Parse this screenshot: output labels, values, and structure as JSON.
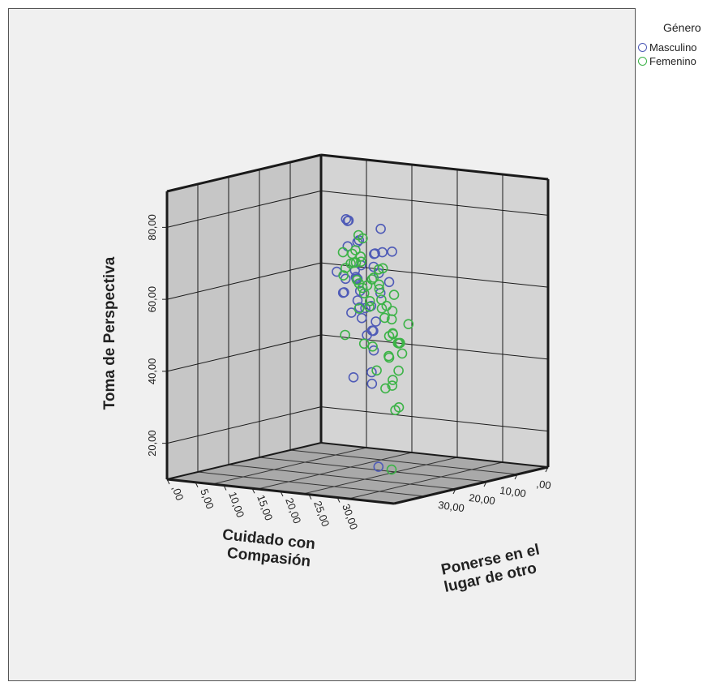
{
  "chart_data": {
    "type": "scatter",
    "projection": "3d",
    "x_axis": {
      "label_lines": [
        "Cuidado con",
        "Compasión"
      ],
      "ticks": [
        ",00",
        "10,00",
        "20,00",
        "30,00"
      ]
    },
    "z_axis": {
      "label_lines": [
        "Ponerse en el",
        "lugar de otro"
      ],
      "ticks": [
        ",00",
        "5,00",
        "10,00",
        "15,00",
        "20,00",
        "25,00",
        "30,00"
      ]
    },
    "y_axis": {
      "label": "Toma de Perspectiva",
      "ticks": [
        "20,00",
        "40,00",
        "60,00",
        "80,00"
      ]
    },
    "legend": {
      "title": "Género",
      "placement": "top-right",
      "entries": [
        {
          "name": "Masculino",
          "color": "#4f5bb7"
        },
        {
          "name": "Femenino",
          "color": "#3cb347"
        }
      ]
    },
    "series": [
      {
        "name": "Masculino",
        "color": "#4f5bb7",
        "points": [
          [
            19,
            15,
            78
          ],
          [
            14,
            12,
            77
          ],
          [
            23,
            23,
            78
          ],
          [
            15,
            13,
            77
          ],
          [
            19,
            17,
            73
          ],
          [
            14,
            14,
            71
          ],
          [
            19,
            15,
            71
          ],
          [
            28,
            26,
            73
          ],
          [
            27,
            24,
            72
          ],
          [
            23,
            22,
            71
          ],
          [
            29,
            25,
            69
          ],
          [
            31,
            27,
            68
          ],
          [
            35,
            31,
            67
          ],
          [
            36,
            30,
            64
          ],
          [
            18,
            16,
            62
          ],
          [
            25,
            20,
            64
          ],
          [
            26,
            21,
            61
          ],
          [
            28,
            22,
            57
          ],
          [
            31,
            24,
            55
          ],
          [
            35,
            28,
            53
          ],
          [
            33,
            26,
            51
          ],
          [
            37,
            29,
            42
          ],
          [
            30,
            22,
            38
          ],
          [
            22,
            16,
            59
          ],
          [
            27,
            20,
            55
          ],
          [
            26,
            18,
            60
          ],
          [
            20,
            17,
            63
          ],
          [
            24,
            19,
            66
          ],
          [
            23,
            25,
            72
          ],
          [
            22,
            19,
            67
          ],
          [
            16,
            13,
            61
          ],
          [
            17,
            12,
            63
          ],
          [
            28,
            23,
            57
          ],
          [
            25,
            20,
            58
          ],
          [
            43,
            33,
            58
          ],
          [
            39,
            30,
            61
          ],
          [
            42,
            32,
            55
          ],
          [
            40,
            31,
            49
          ],
          [
            44,
            34,
            18
          ],
          [
            24,
            22,
            35
          ]
        ]
      },
      {
        "name": "Femenino",
        "color": "#3cb347",
        "points": [
          [
            12,
            12,
            67
          ],
          [
            16,
            15,
            61
          ],
          [
            19,
            17,
            61
          ],
          [
            21,
            19,
            59
          ],
          [
            13,
            11,
            61
          ],
          [
            16,
            13,
            64
          ],
          [
            18,
            15,
            66
          ],
          [
            20,
            17,
            67
          ],
          [
            22,
            19,
            68
          ],
          [
            22,
            18,
            71
          ],
          [
            21,
            18,
            75
          ],
          [
            24,
            20,
            70
          ],
          [
            20,
            19,
            61
          ],
          [
            21,
            20,
            57
          ],
          [
            19,
            17,
            54
          ],
          [
            23,
            21,
            56
          ],
          [
            24,
            22,
            64
          ],
          [
            29,
            25,
            66
          ],
          [
            31,
            27,
            69
          ],
          [
            32,
            28,
            61
          ],
          [
            34,
            30,
            60
          ],
          [
            36,
            32,
            57
          ],
          [
            35,
            31,
            52
          ],
          [
            32,
            30,
            52
          ],
          [
            37,
            34,
            51
          ],
          [
            34,
            32,
            50
          ],
          [
            33,
            27,
            48
          ],
          [
            35,
            31,
            46
          ],
          [
            37,
            32,
            47
          ],
          [
            40,
            36,
            49
          ],
          [
            41,
            36,
            52
          ],
          [
            42,
            34,
            59
          ],
          [
            43,
            37,
            45
          ],
          [
            43,
            36,
            55
          ],
          [
            45,
            37,
            62
          ],
          [
            50,
            40,
            68
          ],
          [
            49,
            42,
            60
          ],
          [
            30,
            27,
            58
          ],
          [
            29,
            26,
            63
          ],
          [
            26,
            25,
            68
          ],
          [
            27,
            22,
            76
          ],
          [
            18,
            14,
            46
          ],
          [
            21,
            19,
            45
          ],
          [
            28,
            25,
            40
          ],
          [
            32,
            30,
            39
          ],
          [
            34,
            31,
            38
          ],
          [
            27,
            26,
            35
          ],
          [
            30,
            30,
            31
          ],
          [
            33,
            31,
            31
          ],
          [
            25,
            26,
            12
          ],
          [
            16,
            16,
            59
          ],
          [
            18,
            20,
            61
          ],
          [
            17,
            15,
            66
          ],
          [
            15,
            12,
            68
          ]
        ]
      }
    ]
  }
}
